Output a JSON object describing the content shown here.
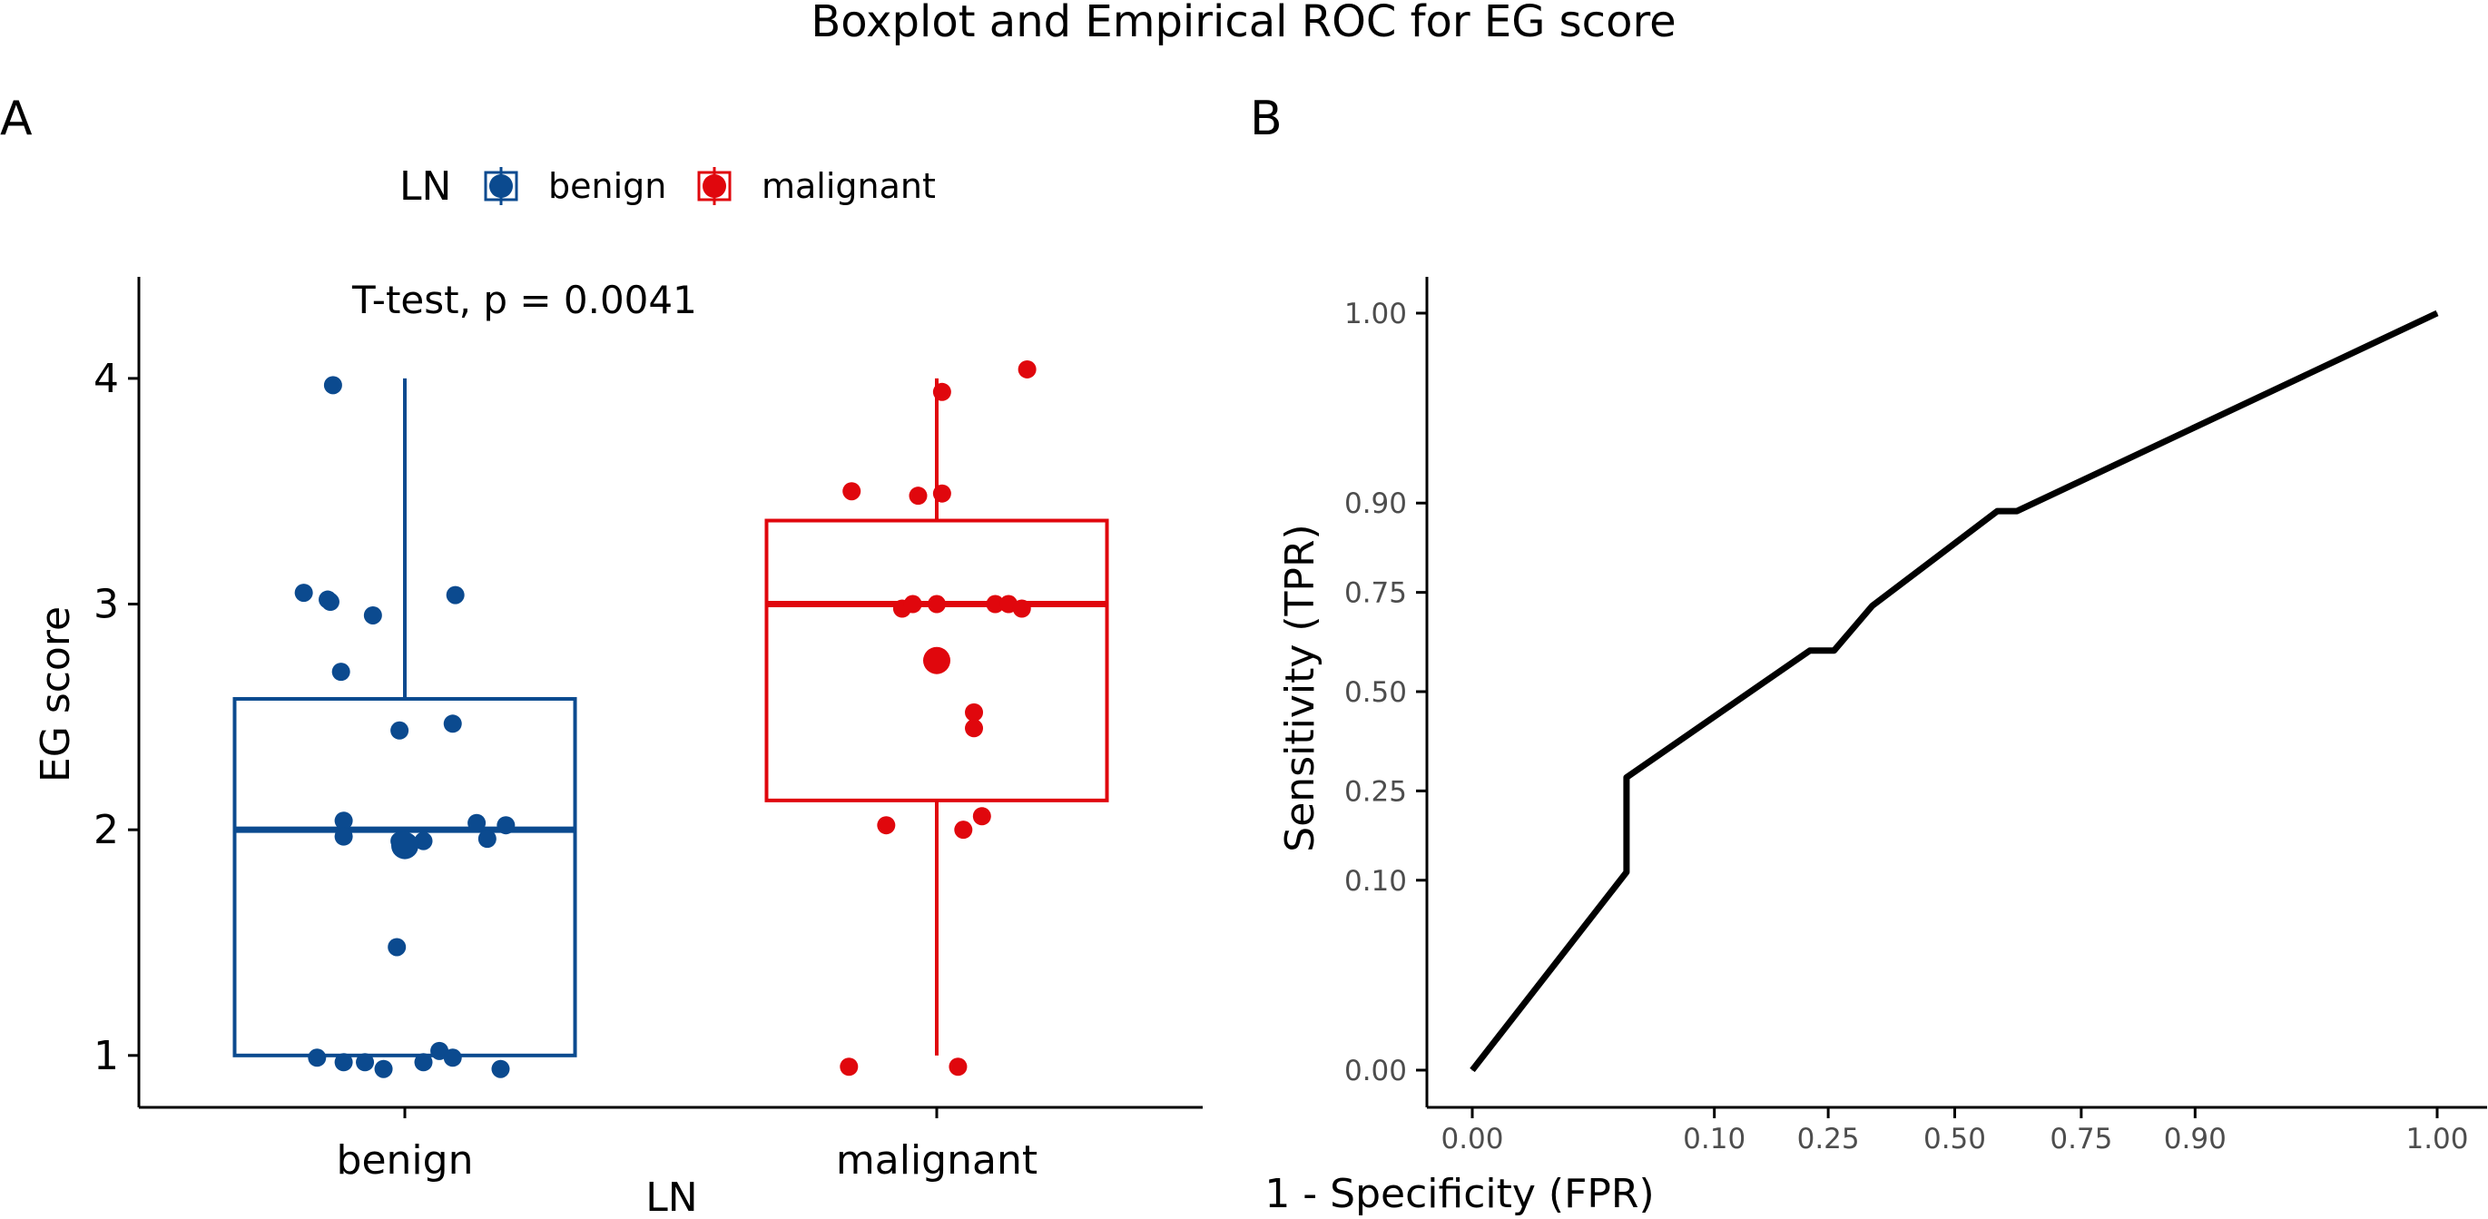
{
  "figure": {
    "title": "Boxplot and Empirical ROC for EG score"
  },
  "chart_data": [
    {
      "panel": "A",
      "type": "boxplot",
      "title": "",
      "xlabel": "LN",
      "ylabel": "EG score",
      "categories": [
        "benign",
        "malignant"
      ],
      "ylim": [
        0.77,
        4.45
      ],
      "yticks": [
        1,
        2,
        3,
        4
      ],
      "yticklabels": [
        "1",
        "2",
        "3",
        "4"
      ],
      "legend": {
        "title": "LN",
        "position": "top",
        "entries": [
          {
            "label": "benign",
            "color": "#0b4a8f"
          },
          {
            "label": "malignant",
            "color": "#e0070d"
          }
        ]
      },
      "annotation": "T-test, p = 0.0041",
      "groups": [
        {
          "name": "benign",
          "color": "#0b4a8f",
          "box": {
            "min": 1.0,
            "q1": 1.0,
            "median": 2.0,
            "q3": 2.58,
            "max": 4.0
          },
          "mean": 1.93,
          "points": [
            {
              "dx": -0.27,
              "y": 3.97
            },
            {
              "dx": -0.38,
              "y": 3.05
            },
            {
              "dx": -0.29,
              "y": 3.02
            },
            {
              "dx": -0.28,
              "y": 3.01
            },
            {
              "dx": -0.12,
              "y": 2.95
            },
            {
              "dx": 0.19,
              "y": 3.04
            },
            {
              "dx": -0.24,
              "y": 2.7
            },
            {
              "dx": -0.02,
              "y": 2.44
            },
            {
              "dx": 0.18,
              "y": 2.47
            },
            {
              "dx": -0.23,
              "y": 2.04
            },
            {
              "dx": -0.23,
              "y": 1.97
            },
            {
              "dx": -0.02,
              "y": 1.95
            },
            {
              "dx": 0.07,
              "y": 1.95
            },
            {
              "dx": 0.27,
              "y": 2.03
            },
            {
              "dx": 0.31,
              "y": 1.96
            },
            {
              "dx": 0.38,
              "y": 2.02
            },
            {
              "dx": -0.03,
              "y": 1.48
            },
            {
              "dx": -0.33,
              "y": 0.99
            },
            {
              "dx": -0.23,
              "y": 0.97
            },
            {
              "dx": -0.15,
              "y": 0.97
            },
            {
              "dx": -0.08,
              "y": 0.94
            },
            {
              "dx": 0.07,
              "y": 0.97
            },
            {
              "dx": 0.13,
              "y": 1.02
            },
            {
              "dx": 0.18,
              "y": 0.99
            },
            {
              "dx": 0.36,
              "y": 0.94
            }
          ]
        },
        {
          "name": "malignant",
          "color": "#e0070d",
          "box": {
            "min": 1.0,
            "q1": 2.13,
            "median": 3.0,
            "q3": 3.37,
            "max": 4.0
          },
          "mean": 2.75,
          "points": [
            {
              "dx": 0.02,
              "y": 3.94
            },
            {
              "dx": 0.34,
              "y": 4.04
            },
            {
              "dx": -0.32,
              "y": 3.5
            },
            {
              "dx": -0.07,
              "y": 3.48
            },
            {
              "dx": 0.02,
              "y": 3.49
            },
            {
              "dx": -0.13,
              "y": 2.98
            },
            {
              "dx": -0.09,
              "y": 3.0
            },
            {
              "dx": 0.0,
              "y": 3.0
            },
            {
              "dx": 0.22,
              "y": 3.0
            },
            {
              "dx": 0.27,
              "y": 3.0
            },
            {
              "dx": 0.32,
              "y": 2.98
            },
            {
              "dx": 0.14,
              "y": 2.52
            },
            {
              "dx": 0.14,
              "y": 2.45
            },
            {
              "dx": -0.19,
              "y": 2.02
            },
            {
              "dx": 0.1,
              "y": 2.0
            },
            {
              "dx": 0.17,
              "y": 2.06
            },
            {
              "dx": -0.33,
              "y": 0.95
            },
            {
              "dx": 0.08,
              "y": 0.95
            }
          ]
        }
      ]
    },
    {
      "panel": "B",
      "type": "line",
      "title": "",
      "xlabel": "1 - Specificity (FPR)",
      "ylabel": "Sensitivity (TPR)",
      "xlim": [
        -0.04,
        1.04
      ],
      "ylim": [
        -0.05,
        1.05
      ],
      "scale": "probit",
      "xticks": [
        0.0,
        0.1,
        0.25,
        0.5,
        0.75,
        0.9,
        1.0
      ],
      "xticklabels": [
        "0.00",
        "0.10",
        "0.25",
        "0.50",
        "0.75",
        "0.90",
        "1.00"
      ],
      "yticks": [
        0.0,
        0.1,
        0.25,
        0.5,
        0.75,
        0.9,
        1.0
      ],
      "yticklabels": [
        "0.00",
        "0.10",
        "0.25",
        "0.50",
        "0.75",
        "0.90",
        "1.00"
      ],
      "series": [
        {
          "name": "ROC",
          "color": "#000000",
          "x": [
            0.0,
            0.04,
            0.04,
            0.22,
            0.26,
            0.33,
            0.59,
            0.63,
            1.0
          ],
          "y": [
            0.0,
            0.11,
            0.28,
            0.61,
            0.61,
            0.72,
            0.89,
            0.89,
            1.0
          ]
        }
      ]
    }
  ]
}
